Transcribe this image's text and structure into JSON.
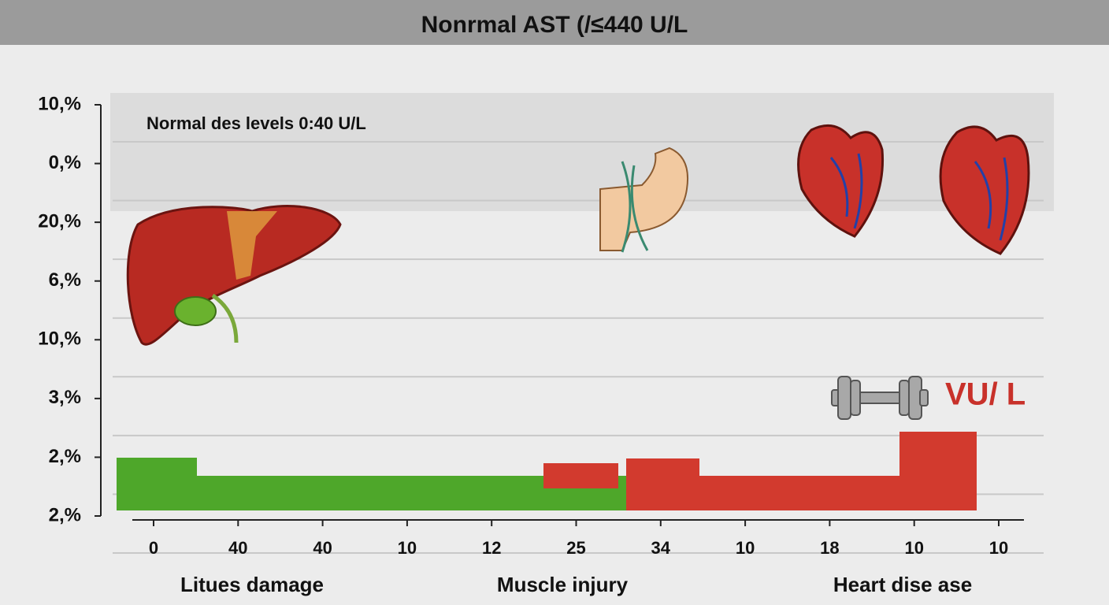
{
  "title": "Nonrmal AST (/≤440 U/L",
  "note": "Normal des levels 0:40 U/L",
  "unit_label": "VU/ L",
  "y_labels": [
    "10,%",
    "0,%",
    "20,%",
    "6,%",
    "10,%",
    "3,%",
    "2,%",
    "2,%"
  ],
  "x_labels": [
    "0",
    "40",
    "40",
    "10",
    "12",
    "25",
    "34",
    "10",
    "18",
    "10",
    "10"
  ],
  "groups": [
    "Litues damage",
    "Muscle injury",
    "Heart dise ase"
  ]
}
